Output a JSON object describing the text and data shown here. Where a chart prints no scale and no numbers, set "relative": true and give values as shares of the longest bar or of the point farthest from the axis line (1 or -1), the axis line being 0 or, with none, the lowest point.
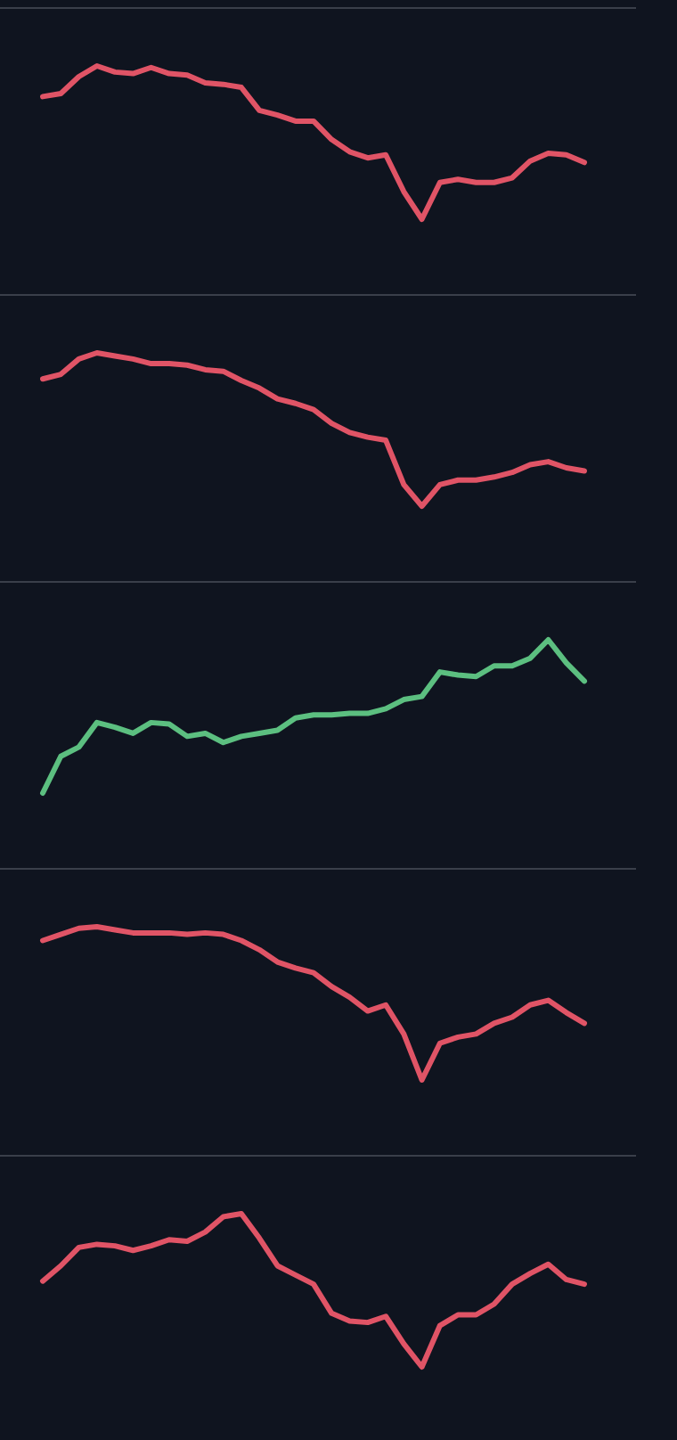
{
  "chart_data": [
    {
      "type": "line",
      "relative": true,
      "categories": [
        null,
        null,
        null,
        null,
        null,
        null,
        null,
        null,
        null,
        null,
        null,
        null,
        null,
        null,
        null,
        null,
        null,
        null,
        null,
        null,
        null,
        null,
        null,
        null,
        null,
        null,
        null,
        null,
        null,
        null,
        null
      ],
      "series": [
        {
          "color": "#e05466",
          "values": [
            0.8,
            0.82,
            0.93,
            1,
            0.96,
            0.95,
            0.99,
            0.95,
            0.94,
            0.89,
            0.88,
            0.86,
            0.71,
            0.68,
            0.64,
            0.64,
            0.52,
            0.44,
            0.4,
            0.42,
            0.18,
            0,
            0.24,
            0.26,
            0.24,
            0.24,
            0.27,
            0.38,
            0.43,
            0.42,
            0.37
          ]
        }
      ]
    },
    {
      "type": "line",
      "relative": true,
      "categories": [
        null,
        null,
        null,
        null,
        null,
        null,
        null,
        null,
        null,
        null,
        null,
        null,
        null,
        null,
        null,
        null,
        null,
        null,
        null,
        null,
        null,
        null,
        null,
        null,
        null,
        null,
        null,
        null,
        null,
        null,
        null
      ],
      "series": [
        {
          "color": "#e05466",
          "values": [
            0.83,
            0.86,
            0.96,
            1,
            0.98,
            0.96,
            0.93,
            0.93,
            0.92,
            0.89,
            0.88,
            0.82,
            0.77,
            0.7,
            0.67,
            0.63,
            0.54,
            0.48,
            0.45,
            0.43,
            0.14,
            0,
            0.14,
            0.17,
            0.17,
            0.19,
            0.22,
            0.27,
            0.29,
            0.25,
            0.23
          ]
        }
      ]
    },
    {
      "type": "line",
      "relative": true,
      "categories": [
        null,
        null,
        null,
        null,
        null,
        null,
        null,
        null,
        null,
        null,
        null,
        null,
        null,
        null,
        null,
        null,
        null,
        null,
        null,
        null,
        null,
        null,
        null,
        null,
        null,
        null,
        null,
        null,
        null,
        null,
        null
      ],
      "series": [
        {
          "color": "#5cbf80",
          "values": [
            0,
            0.24,
            0.3,
            0.46,
            0.43,
            0.39,
            0.46,
            0.45,
            0.37,
            0.39,
            0.33,
            0.37,
            0.39,
            0.41,
            0.49,
            0.51,
            0.51,
            0.52,
            0.52,
            0.55,
            0.61,
            0.63,
            0.79,
            0.77,
            0.76,
            0.83,
            0.83,
            0.88,
            1,
            0.85,
            0.73
          ]
        }
      ]
    },
    {
      "type": "line",
      "relative": true,
      "categories": [
        null,
        null,
        null,
        null,
        null,
        null,
        null,
        null,
        null,
        null,
        null,
        null,
        null,
        null,
        null,
        null,
        null,
        null,
        null,
        null,
        null,
        null,
        null,
        null,
        null,
        null,
        null,
        null,
        null,
        null,
        null
      ],
      "series": [
        {
          "color": "#e05466",
          "values": [
            0.91,
            0.95,
            0.99,
            1,
            0.98,
            0.96,
            0.96,
            0.96,
            0.95,
            0.96,
            0.95,
            0.91,
            0.85,
            0.77,
            0.73,
            0.7,
            0.61,
            0.54,
            0.45,
            0.49,
            0.3,
            0,
            0.24,
            0.28,
            0.3,
            0.37,
            0.41,
            0.49,
            0.52,
            0.44,
            0.37
          ]
        }
      ]
    },
    {
      "type": "line",
      "relative": true,
      "categories": [
        null,
        null,
        null,
        null,
        null,
        null,
        null,
        null,
        null,
        null,
        null,
        null,
        null,
        null,
        null,
        null,
        null,
        null,
        null,
        null,
        null,
        null,
        null,
        null,
        null,
        null,
        null,
        null,
        null,
        null,
        null
      ],
      "series": [
        {
          "color": "#e05466",
          "values": [
            0.56,
            0.66,
            0.78,
            0.8,
            0.79,
            0.76,
            0.79,
            0.83,
            0.82,
            0.88,
            0.98,
            1,
            0.84,
            0.66,
            0.6,
            0.54,
            0.35,
            0.3,
            0.29,
            0.33,
            0.15,
            0,
            0.27,
            0.34,
            0.34,
            0.41,
            0.54,
            0.61,
            0.67,
            0.57,
            0.54
          ]
        }
      ]
    }
  ]
}
